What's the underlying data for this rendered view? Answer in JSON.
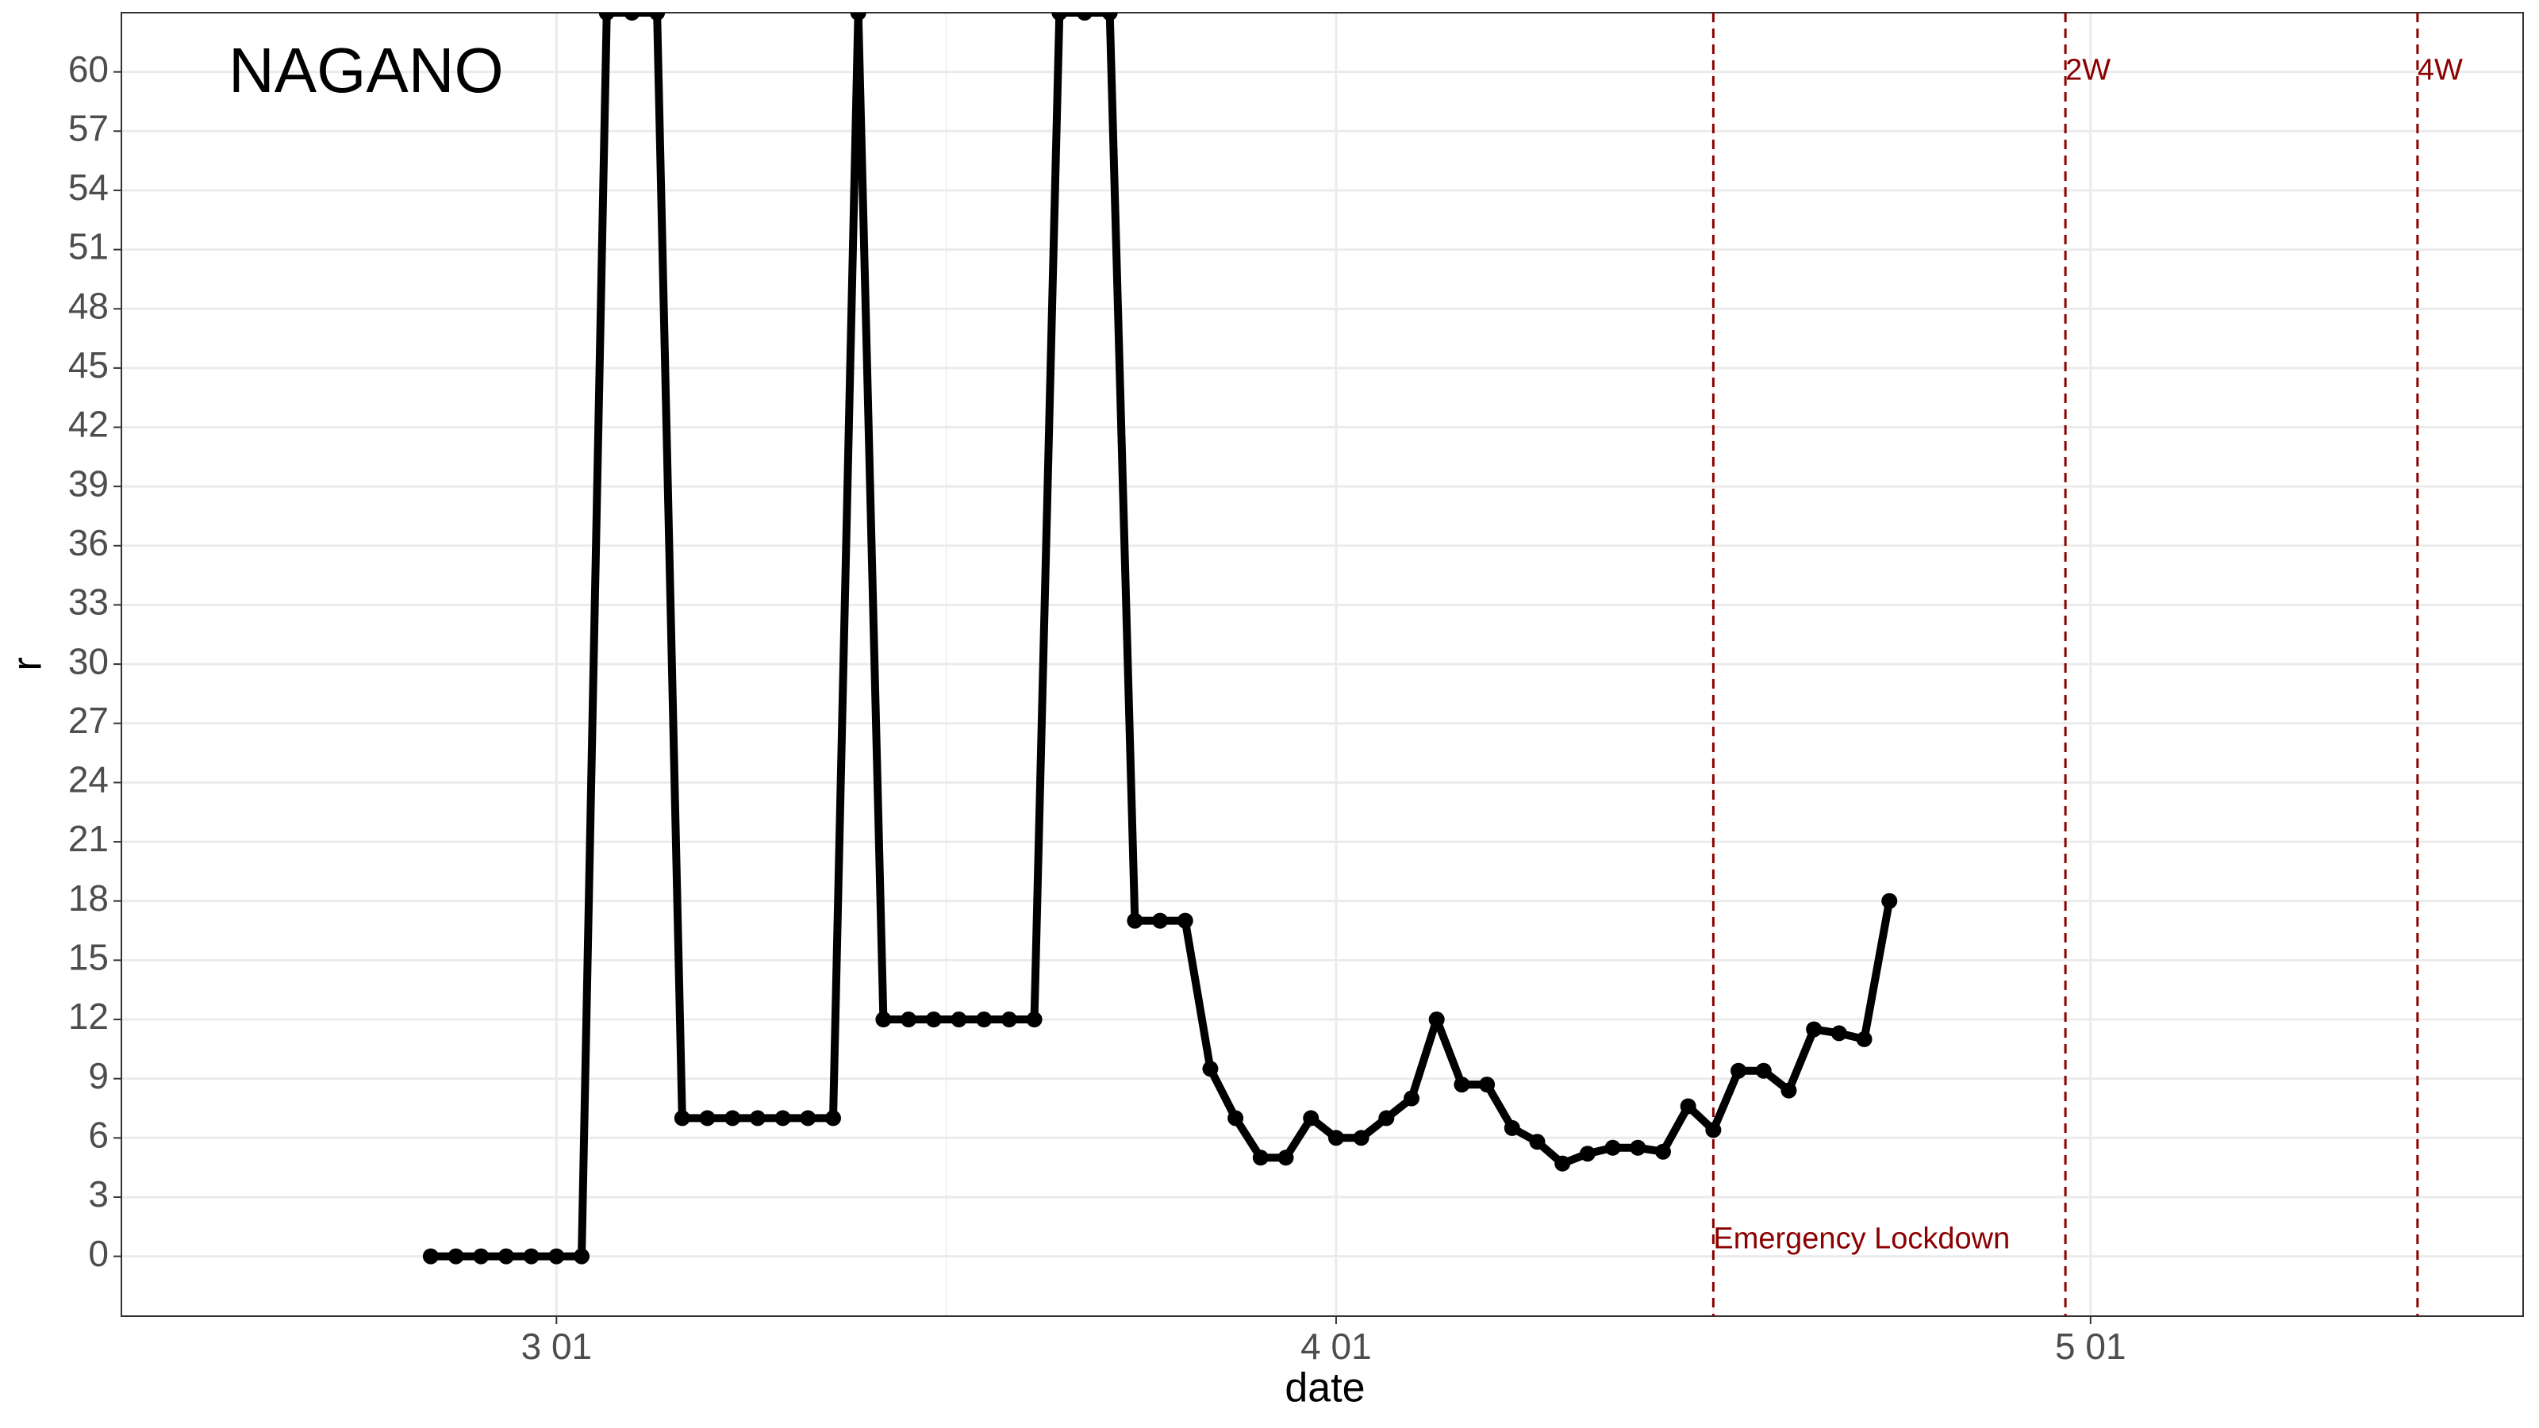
{
  "chart_data": {
    "type": "line",
    "title": "NAGANO",
    "x_label": "date",
    "y_label": "r",
    "x": [
      -5,
      -4,
      -3,
      -2,
      -1,
      0,
      1,
      2,
      3,
      4,
      5,
      6,
      7,
      8,
      9,
      10,
      11,
      12,
      13,
      14,
      15,
      16,
      17,
      18,
      19,
      20,
      21,
      22,
      23,
      24,
      25,
      26,
      27,
      28,
      29,
      30,
      31,
      32,
      33,
      34,
      35,
      36,
      37,
      38,
      39,
      40,
      41,
      42,
      43,
      44,
      45,
      46,
      47,
      48,
      49,
      50,
      51,
      52,
      53
    ],
    "series": [
      {
        "name": "r",
        "color": "#000000",
        "values": [
          0,
          0,
          0,
          0,
          0,
          0,
          0,
          63,
          63,
          63,
          7,
          7,
          7,
          7,
          7,
          7,
          7,
          63,
          12,
          12,
          12,
          12,
          12,
          12,
          12,
          63,
          63,
          63,
          17,
          17,
          17,
          9.5,
          7,
          5,
          5,
          7,
          6,
          6,
          7,
          8,
          12,
          8.7,
          8.7,
          6.5,
          5.8,
          4.7,
          5.2,
          5.5,
          5.5,
          5.3,
          7.6,
          6.4,
          9.4,
          9.4,
          8.4,
          11.5,
          11.3,
          11,
          18
        ]
      }
    ],
    "xlim": [
      -17.3,
      78.2
    ],
    "xticks": [
      {
        "value": 0,
        "label": "3 01"
      },
      {
        "value": 31,
        "label": "4 01"
      },
      {
        "value": 61,
        "label": "5 01"
      }
    ],
    "ylim": [
      -3.03,
      63
    ],
    "yticks": [
      0,
      3,
      6,
      9,
      12,
      15,
      18,
      21,
      24,
      27,
      30,
      33,
      36,
      39,
      42,
      45,
      48,
      51,
      54,
      57,
      60
    ],
    "grid": true,
    "vlines": [
      {
        "x": 46,
        "label": "Emergency Lockdown",
        "color": "#8b0000"
      },
      {
        "x": 60,
        "label": "2W",
        "color": "#8b0000"
      },
      {
        "x": 74,
        "label": "4W",
        "color": "#8b0000"
      }
    ]
  }
}
